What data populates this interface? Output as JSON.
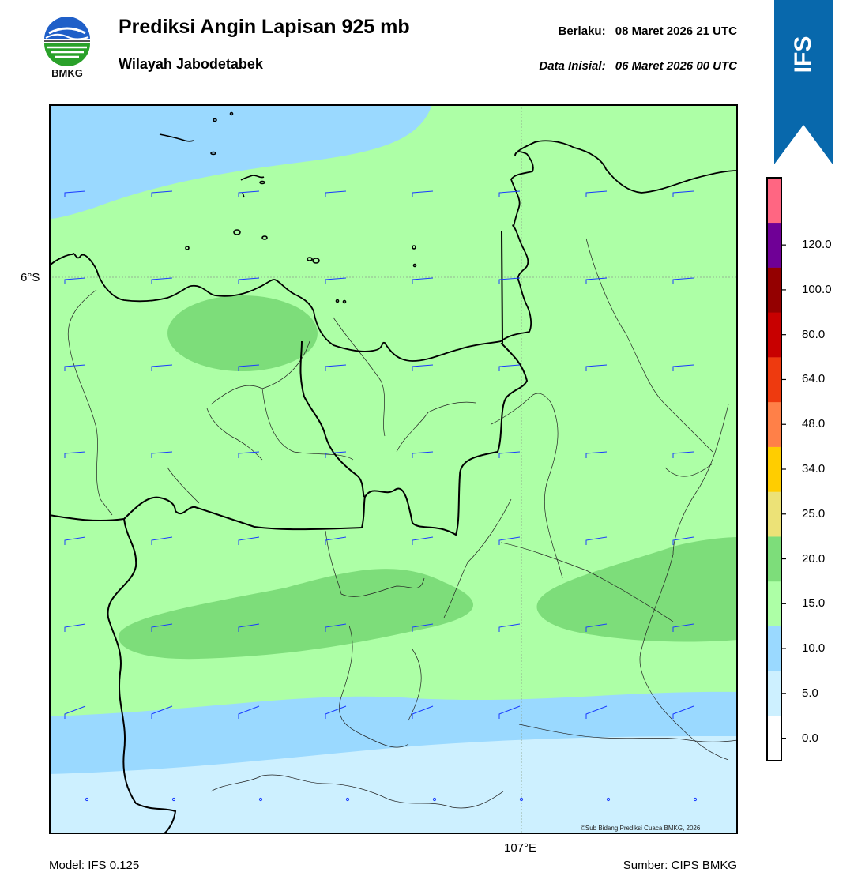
{
  "header": {
    "title": "Prediksi Angin Lapisan 925 mb",
    "subtitle": "Wilayah Jabodetabek",
    "valid_label": "Berlaku:",
    "valid_time": "08 Maret 2026 21 UTC",
    "init_label": "Data Inisial:",
    "init_time": "06 Maret 2026 00 UTC"
  },
  "logo": {
    "text": "BMKG",
    "icon": "bmkg-logo-icon"
  },
  "model_badge": {
    "label": "IFS",
    "color": "#0868ac"
  },
  "map": {
    "lat_label": "6°S",
    "lon_label": "107°E",
    "credit": "©Sub Bidang Prediksi Cuaca BMKG, 2026",
    "barb_color": "#1a3cff",
    "coastline_color": "#000000"
  },
  "colorbar": {
    "levels": [
      "0.0",
      "5.0",
      "10.0",
      "15.0",
      "20.0",
      "25.0",
      "34.0",
      "48.0",
      "64.0",
      "80.0",
      "100.0",
      "120.0"
    ],
    "colors": [
      "#ffffff",
      "#cdf0ff",
      "#9ad9ff",
      "#adffa6",
      "#7ddd7a",
      "#ece277",
      "#ffcd00",
      "#ff8048",
      "#ee3a0f",
      "#c80000",
      "#940000",
      "#6f0096",
      "#ff6682"
    ]
  },
  "footer": {
    "model": "Model: IFS 0.125",
    "source": "Sumber: CIPS BMKG"
  }
}
